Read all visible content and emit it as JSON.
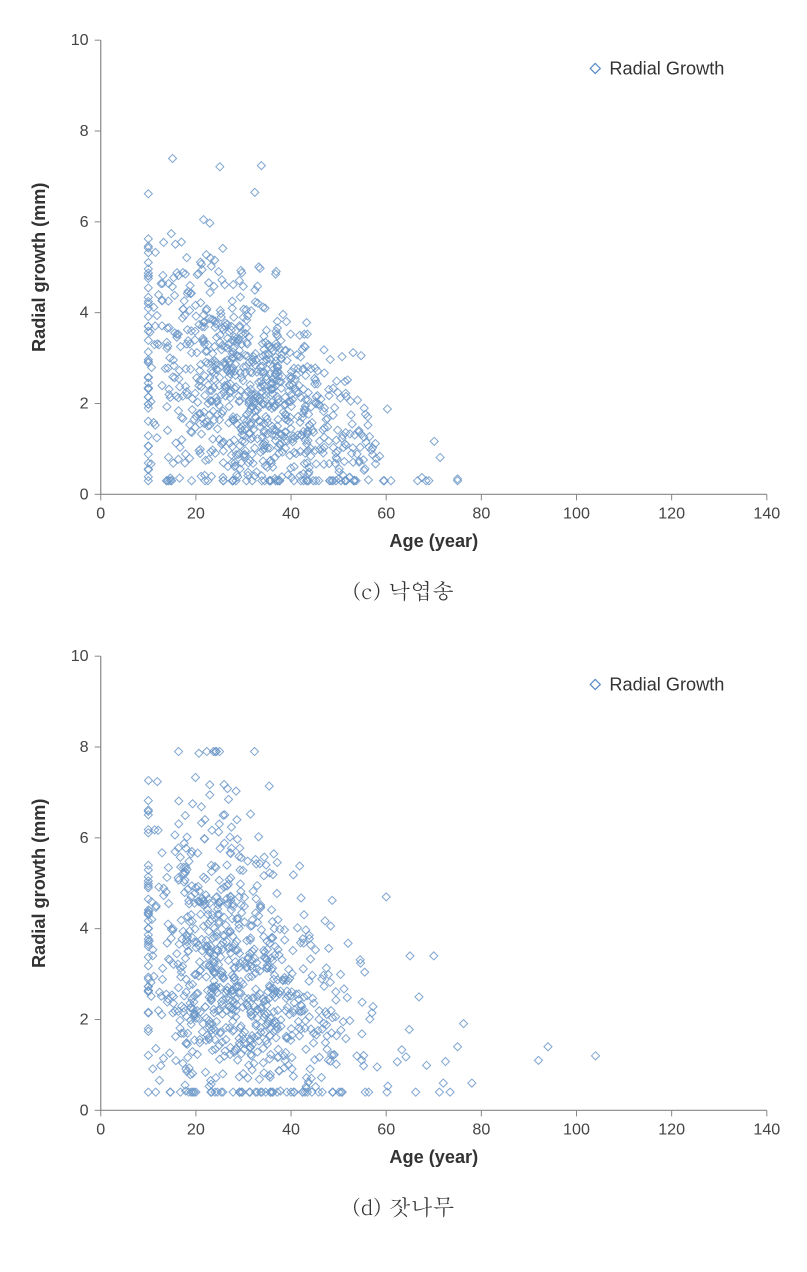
{
  "charts": [
    {
      "id": "chart-c",
      "caption": "(c) 낙엽송",
      "type": "scatter",
      "legend": {
        "label": "Radial Growth",
        "marker_color": "#7fa8d4",
        "marker_stroke": "#5b8bc4"
      },
      "xlabel": "Age (year)",
      "ylabel": "Radial growth (mm)",
      "xlim": [
        0,
        140
      ],
      "ylim": [
        0,
        10
      ],
      "xticks": [
        0,
        20,
        40,
        60,
        80,
        100,
        120,
        140
      ],
      "yticks": [
        0,
        2,
        4,
        6,
        8,
        10
      ],
      "background_color": "#ffffff",
      "axis_color": "#888888",
      "tick_color": "#888888",
      "marker_color": "#7fa8d4",
      "marker_stroke": "#6b96c8",
      "marker_size": 4,
      "marker_shape": "diamond",
      "label_fontsize": 18,
      "tick_fontsize": 16,
      "cluster": {
        "n": 900,
        "x_center": 30,
        "x_spread": 12,
        "y_base": 2.3,
        "y_spread": 1.4,
        "x_min": 10,
        "x_max": 75,
        "y_min": 0.3,
        "y_max": 7.6,
        "slope": -0.05
      }
    },
    {
      "id": "chart-d",
      "caption": "(d) 잣나무",
      "type": "scatter",
      "legend": {
        "label": "Radial Growth",
        "marker_color": "#7fa8d4",
        "marker_stroke": "#5b8bc4"
      },
      "xlabel": "Age (year)",
      "ylabel": "Radial growth (mm)",
      "xlim": [
        0,
        140
      ],
      "ylim": [
        0,
        10
      ],
      "xticks": [
        0,
        20,
        40,
        60,
        80,
        100,
        120,
        140
      ],
      "yticks": [
        0,
        2,
        4,
        6,
        8,
        10
      ],
      "background_color": "#ffffff",
      "axis_color": "#888888",
      "tick_color": "#888888",
      "marker_color": "#7fa8d4",
      "marker_stroke": "#6b96c8",
      "marker_size": 4,
      "marker_shape": "diamond",
      "label_fontsize": 18,
      "tick_fontsize": 16,
      "cluster": {
        "n": 900,
        "x_center": 27,
        "x_spread": 11,
        "y_base": 3.0,
        "y_spread": 1.6,
        "x_min": 10,
        "x_max": 105,
        "y_min": 0.4,
        "y_max": 7.9,
        "slope": -0.055
      },
      "extra_points": [
        [
          60,
          4.7
        ],
        [
          65,
          3.4
        ],
        [
          70,
          3.4
        ],
        [
          72,
          0.6
        ],
        [
          75,
          1.4
        ],
        [
          78,
          0.6
        ],
        [
          92,
          1.1
        ],
        [
          94,
          1.4
        ],
        [
          104,
          1.2
        ]
      ]
    }
  ]
}
